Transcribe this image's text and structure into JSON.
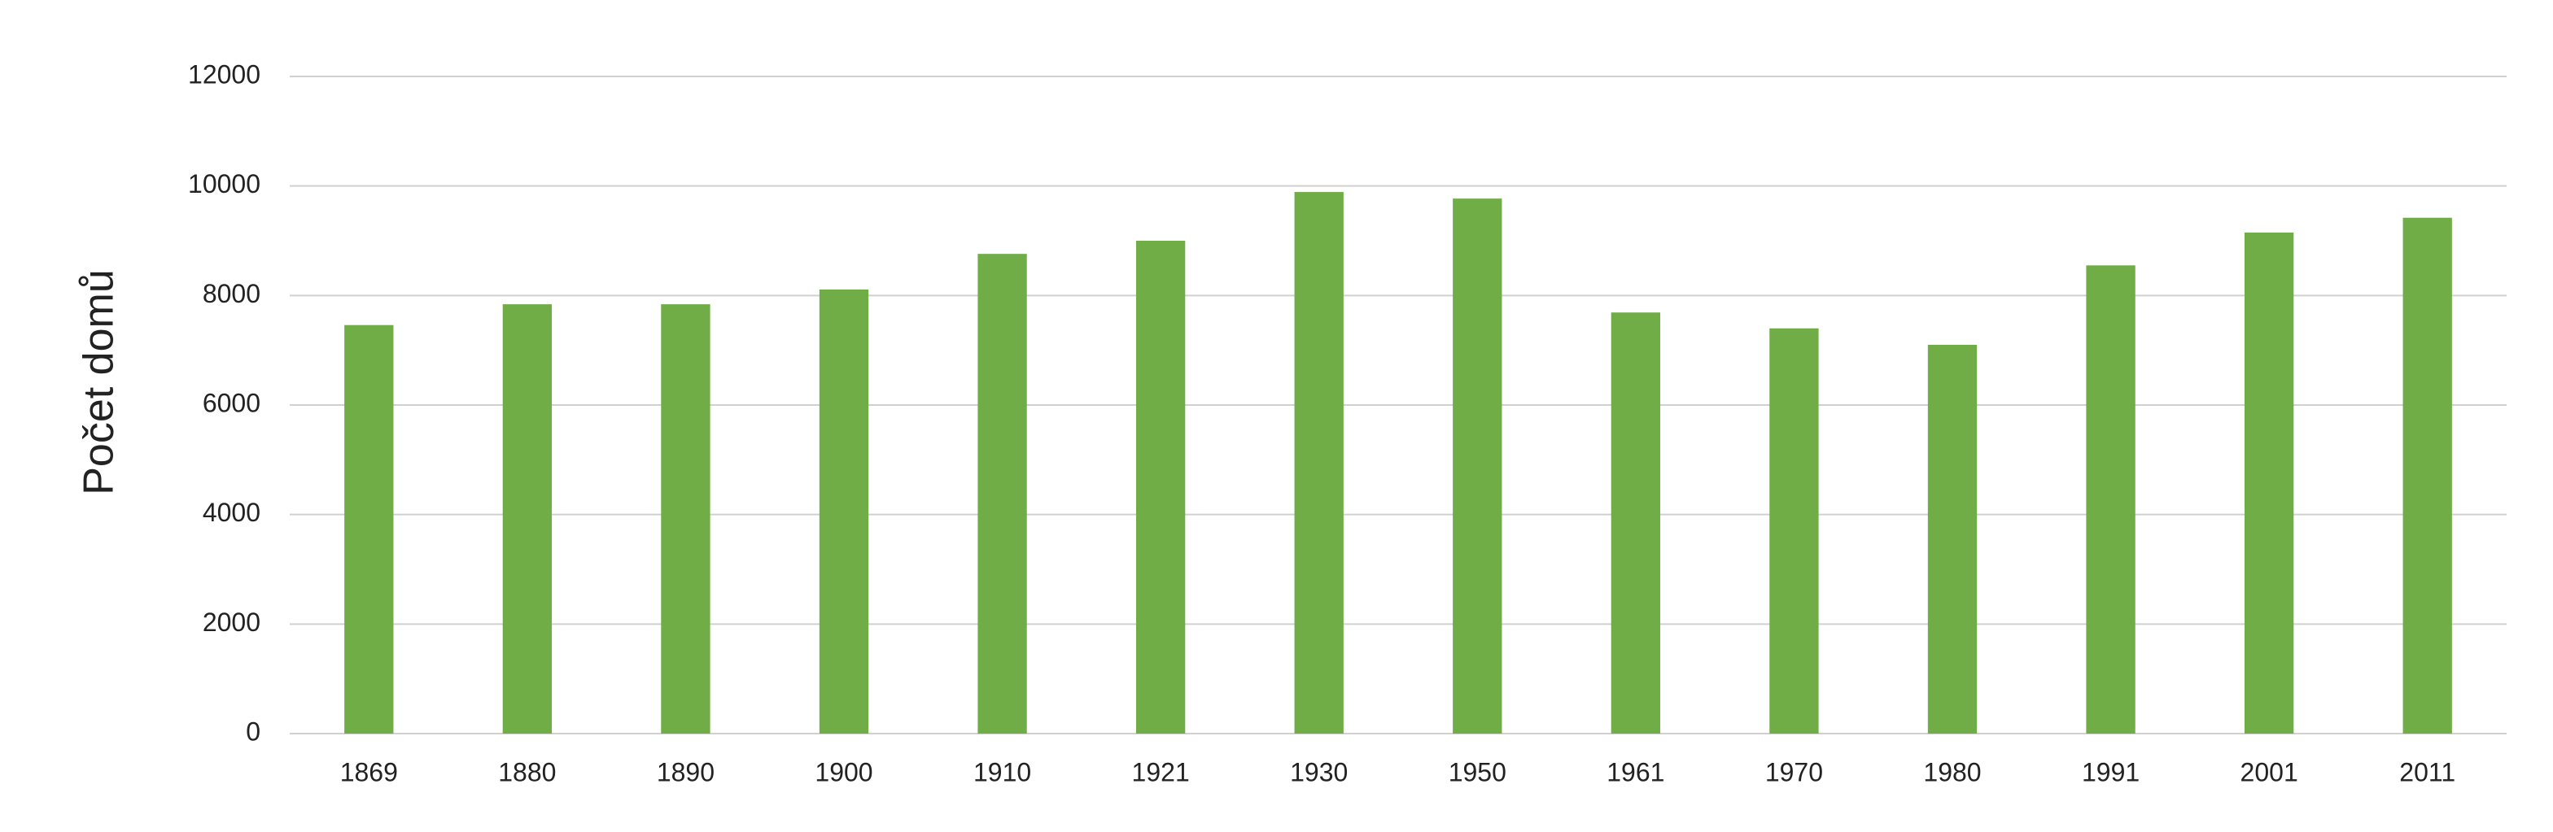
{
  "chart_data": {
    "type": "bar",
    "y_label": "Počet domů",
    "categories": [
      "1869",
      "1880",
      "1890",
      "1900",
      "1910",
      "1921",
      "1930",
      "1950",
      "1961",
      "1970",
      "1980",
      "1991",
      "2001",
      "2011"
    ],
    "values": [
      7460,
      7840,
      7840,
      8110,
      8760,
      9000,
      9890,
      9770,
      7690,
      7400,
      7100,
      8550,
      9150,
      9420
    ],
    "color": "#70ad47",
    "ylim": [
      0,
      12000
    ],
    "yticks": [
      0,
      2000,
      4000,
      6000,
      8000,
      10000,
      12000
    ],
    "grid": true
  }
}
